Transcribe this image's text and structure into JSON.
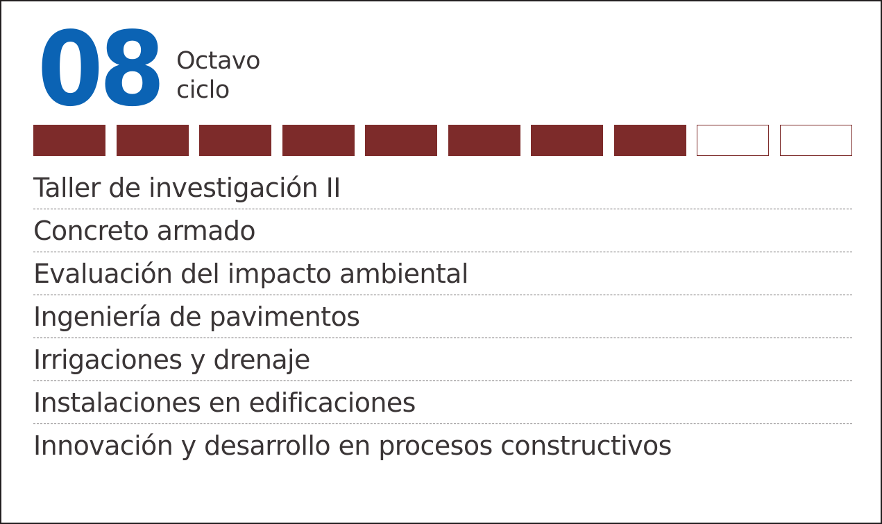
{
  "cycle": {
    "number": "08",
    "label_line1": "Octavo",
    "label_line2": "ciclo",
    "number_color": "#0b63b4"
  },
  "progress": {
    "completed": 8,
    "total": 10,
    "filled_color": "#7d2b2a",
    "empty_color": "#ffffff"
  },
  "courses": [
    "Taller de investigación II",
    "Concreto armado",
    "Evaluación del impacto ambiental",
    "Ingeniería de pavimentos",
    "Irrigaciones y drenaje",
    "Instalaciones en edificaciones",
    "Innovación y desarrollo en procesos constructivos"
  ]
}
